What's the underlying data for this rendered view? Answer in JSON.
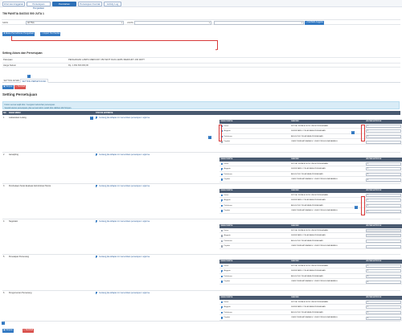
{
  "tabs": [
    {
      "label": "Informasi Anggaran",
      "active": false
    },
    {
      "label": "Persetujuan Pengadaan",
      "active": false
    },
    {
      "label": "Perubahan Pengadaan",
      "active": true
    },
    {
      "label": "Persetujuan Kontrak",
      "active": false
    },
    {
      "label": "Activity Log",
      "active": false
    }
  ],
  "page_title": "TIM PANITIA DIATAS 500 JUTA 1",
  "filter": {
    "skpd_label": "SKPD",
    "skpd_value": "AKTIVA",
    "unit_label": "UNITS",
    "unit_value": "",
    "search_button": "Cari/Edit Anggota",
    "add_button": "Akses Permohonan Pengadaan",
    "template_button": "Import Tim Panitia"
  },
  "access": {
    "title": "Setting Akses dan Persetujuan",
    "rows": [
      {
        "k": "Pekerjaan",
        "v": "PENGADAAN LAMPU MERCURY 250 WATT DAN LAMPU MERCURY 160 WATT"
      },
      {
        "k": "Harga Satuan",
        "v": "Rp. 1.091.600.000,00"
      }
    ]
  },
  "subtabs": [
    {
      "label": "SETTING AKSES",
      "active": false
    },
    {
      "label": "SETTING PERSETUJUAN",
      "active": true
    }
  ],
  "toolbar": {
    "save_label": "Simpan",
    "cancel_label": "Kembali"
  },
  "section_title": "Setting Persetujuan",
  "notice_lines": [
    "Kolom semua wajib diisi / mengatur kebutuhan persetujuan.",
    "Setelah aturan persetujuan, jika semua kolom sudah diisi silahkan klik Simpan."
  ],
  "main_headers": {
    "no": "NO",
    "name": "NAMA MENU",
    "status": "STATUS APPROVE"
  },
  "approve_text": "Centang jika tahapan ini memerlukan persetujuan / approve",
  "sub_headers": {
    "role": "NAMA PANITIA",
    "jabatan": "JABATAN",
    "urutan": "URUTAN APPROVE"
  },
  "stages": [
    {
      "no": "1",
      "name": "Laksanakan Lelang",
      "rows": [
        {
          "role": "Ketua",
          "on": true,
          "jab": "KETUA / KEPALA DIVISI UMUM PENGADAAN",
          "val": "1"
        },
        {
          "role": "Anggota",
          "on": true,
          "jab": "SEKRETARIS / PELAKSANA PENGADAAN",
          "val": "2"
        },
        {
          "role": "Pelaksana",
          "on": true,
          "jab": "ANGGOTA / PELAKSANA PENGADAAN",
          "val": "3"
        },
        {
          "role": "Pejabat",
          "on": false,
          "jab": "USER PEMBUAT BARANG / USER PENGGUNA BARANG",
          "val": ""
        }
      ]
    },
    {
      "no": "2",
      "name": "Aanwijzing",
      "rows": [
        {
          "role": "Ketua",
          "on": true,
          "jab": "KETUA / KEPALA DIVISI UMUM PENGADAAN",
          "val": "1"
        },
        {
          "role": "Anggota",
          "on": true,
          "jab": "SEKRETARIS / PELAKSANA PENGADAAN",
          "val": "2"
        },
        {
          "role": "Pelaksana",
          "on": true,
          "jab": "ANGGOTA / PELAKSANA PENGADAAN",
          "val": "3"
        },
        {
          "role": "Pejabat",
          "on": true,
          "jab": "USER PEMBUAT BARANG / USER PENGGUNA BARANG",
          "val": "4"
        }
      ]
    },
    {
      "no": "3",
      "name": "Pembukaan Surat Evaluasi Administrasi Teknis",
      "rows": [
        {
          "role": "Ketua",
          "on": true,
          "jab": "KETUA / KEPALA DIVISI UMUM PENGADAAN",
          "val": "1"
        },
        {
          "role": "Anggota",
          "on": true,
          "jab": "SEKRETARIS / PELAKSANA PENGADAAN",
          "val": "2"
        },
        {
          "role": "Pelaksana",
          "on": true,
          "jab": "ANGGOTA / PELAKSANA PENGADAAN",
          "val": "3"
        },
        {
          "role": "Pejabat",
          "on": true,
          "jab": "USER PEMBUAT BARANG / USER PENGGUNA BARANG",
          "val": "4"
        }
      ]
    },
    {
      "no": "4",
      "name": "Negosiasi",
      "rows": [
        {
          "role": "Ketua",
          "on": false,
          "jab": "KETUA / KEPALA DIVISI UMUM PENGADAAN",
          "val": ""
        },
        {
          "role": "Anggota",
          "on": false,
          "jab": "SEKRETARIS / PELAKSANA PENGADAAN",
          "val": ""
        },
        {
          "role": "Pelaksana",
          "on": false,
          "jab": "ANGGOTA / PELAKSANA PENGADAAN",
          "val": ""
        },
        {
          "role": "Pejabat",
          "on": false,
          "jab": "USER PEMBUAT BARANG / USER PENGGUNA BARANG",
          "val": ""
        }
      ]
    },
    {
      "no": "5",
      "name": "Penetapan Pemenang",
      "rows": [
        {
          "role": "Ketua",
          "on": true,
          "jab": "KETUA / KEPALA DIVISI UMUM PENGADAAN",
          "val": "1"
        },
        {
          "role": "Anggota",
          "on": true,
          "jab": "SEKRETARIS / PELAKSANA PENGADAAN",
          "val": "2"
        },
        {
          "role": "Pelaksana",
          "on": true,
          "jab": "ANGGOTA / PELAKSANA PENGADAAN",
          "val": "3"
        },
        {
          "role": "Pejabat",
          "on": true,
          "jab": "USER PEMBUAT BARANG / USER PENGGUNA BARANG",
          "val": "4"
        }
      ]
    },
    {
      "no": "6",
      "name": "Pengumuman Pemenang",
      "rows": [
        {
          "role": "Ketua",
          "on": true,
          "jab": "KETUA / KEPALA DIVISI UMUM PENGADAAN",
          "val": "1"
        },
        {
          "role": "Anggota",
          "on": true,
          "jab": "SEKRETARIS / PELAKSANA PENGADAAN",
          "val": "2"
        },
        {
          "role": "Pelaksana",
          "on": true,
          "jab": "ANGGOTA / PELAKSANA PENGADAAN",
          "val": "3"
        },
        {
          "role": "Pejabat",
          "on": true,
          "jab": "USER PEMBUAT BARANG / USER PENGGUNA BARANG",
          "val": "4"
        }
      ]
    }
  ],
  "markers": [
    "1",
    "2",
    "3",
    "4",
    "5"
  ],
  "colors": {
    "primary": "#3379c2",
    "danger": "#d9534f",
    "header": "#4a5a70",
    "annotation": "#d83a3a"
  }
}
